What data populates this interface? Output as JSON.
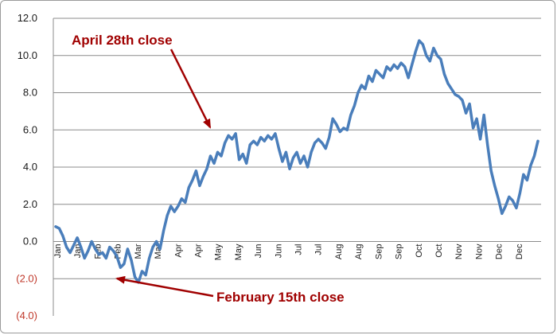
{
  "chart_data": {
    "type": "line",
    "title": "",
    "xlabel": "",
    "ylabel": "",
    "ylim": [
      -4,
      12
    ],
    "yticks": [
      12,
      10,
      8,
      6,
      4,
      2,
      0,
      -2,
      -4
    ],
    "ytick_labels": [
      "12.0",
      "10.0",
      "8.0",
      "6.0",
      "4.0",
      "2.0",
      "0.0",
      "(2.0)",
      "(4.0)"
    ],
    "ytick_negative_color": "#c0392b",
    "ytick_positive_color": "#1a1a1a",
    "x_tick_labels": [
      "Jan",
      "Jan",
      "Feb",
      "Feb",
      "Mar",
      "Mar",
      "Apr",
      "Apr",
      "May",
      "May",
      "Jun",
      "Jun",
      "Jul",
      "Jul",
      "Aug",
      "Aug",
      "Sep",
      "Sep",
      "Oct",
      "Oct",
      "Nov",
      "Nov",
      "Dec",
      "Dec"
    ],
    "grid": true,
    "line_color": "#4a7ebb",
    "series": [
      {
        "values": [
          0.8,
          0.7,
          0.3,
          -0.3,
          -0.6,
          -0.2,
          0.2,
          -0.3,
          -0.9,
          -0.5,
          0.0,
          -0.4,
          -0.7,
          -0.6,
          -0.9,
          -0.3,
          -0.5,
          -0.8,
          -1.4,
          -1.2,
          -0.4,
          -1.0,
          -1.9,
          -2.2,
          -1.6,
          -1.8,
          -0.9,
          -0.3,
          0.0,
          -0.4,
          0.6,
          1.4,
          1.9,
          1.6,
          1.9,
          2.3,
          2.1,
          2.9,
          3.3,
          3.8,
          3.0,
          3.5,
          3.9,
          4.6,
          4.2,
          4.8,
          4.6,
          5.3,
          5.7,
          5.5,
          5.8,
          4.4,
          4.7,
          4.2,
          5.2,
          5.4,
          5.2,
          5.6,
          5.4,
          5.7,
          5.5,
          5.8,
          5.0,
          4.3,
          4.8,
          3.9,
          4.5,
          4.8,
          4.2,
          4.6,
          4.0,
          4.8,
          5.3,
          5.5,
          5.3,
          5.0,
          5.6,
          6.6,
          6.3,
          5.9,
          6.1,
          6.0,
          6.8,
          7.3,
          8.0,
          8.4,
          8.2,
          8.9,
          8.6,
          9.2,
          9.0,
          8.8,
          9.4,
          9.2,
          9.5,
          9.3,
          9.6,
          9.4,
          8.8,
          9.5,
          10.2,
          10.8,
          10.6,
          10.0,
          9.7,
          10.4,
          10.0,
          9.8,
          9.0,
          8.5,
          8.2,
          7.9,
          7.8,
          7.6,
          6.9,
          7.4,
          6.1,
          6.6,
          5.5,
          6.8,
          5.2,
          3.8,
          3.0,
          2.3,
          1.5,
          1.9,
          2.4,
          2.2,
          1.8,
          2.6,
          3.6,
          3.3,
          4.1,
          4.6,
          5.4
        ]
      }
    ]
  },
  "annotations": [
    {
      "text": "April 28th close",
      "color": "#a00000"
    },
    {
      "text": "February 15th close",
      "color": "#a00000"
    }
  ]
}
